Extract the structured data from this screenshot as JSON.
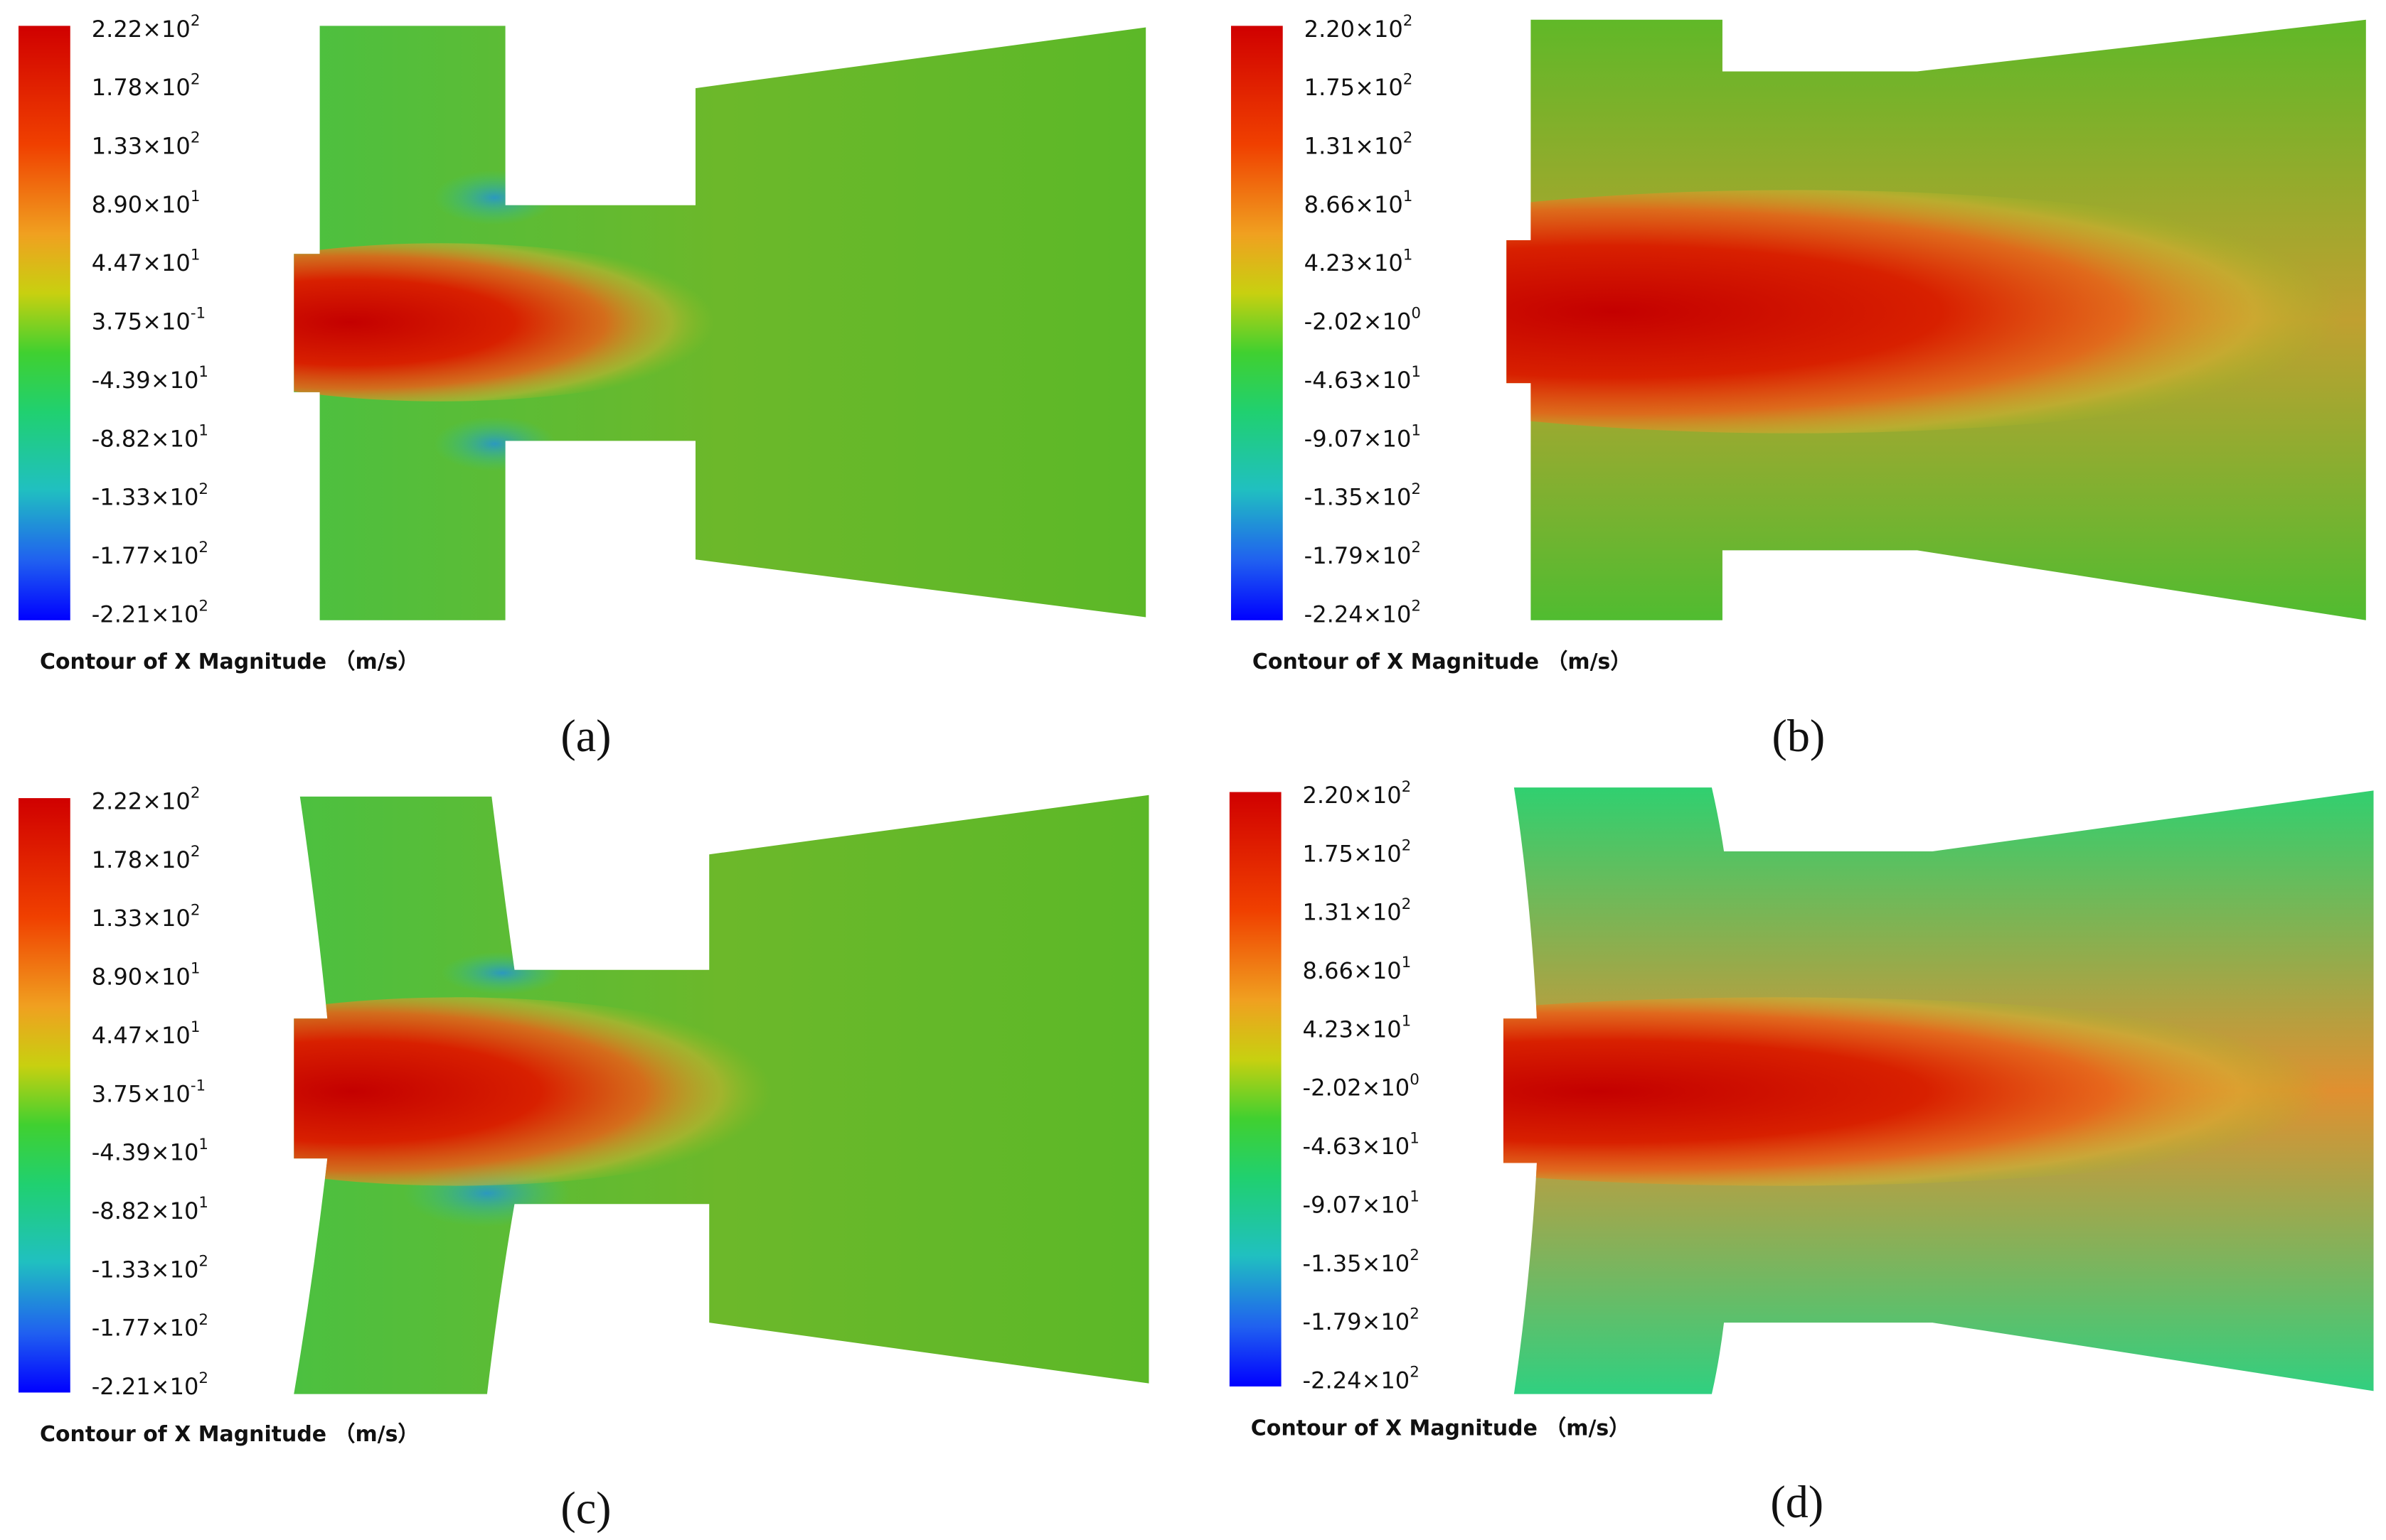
{
  "panels": [
    {
      "legend_labels": [
        {
          "base": "2.22×10",
          "exp": "2"
        },
        {
          "base": "1.78×10",
          "exp": "2"
        },
        {
          "base": "1.33×10",
          "exp": "2"
        },
        {
          "base": "8.90×10",
          "exp": "1"
        },
        {
          "base": "4.47×10",
          "exp": "1"
        },
        {
          "base": "3.75×10",
          "exp": "-1"
        },
        {
          "base": "-4.39×10",
          "exp": "1"
        },
        {
          "base": "-8.82×10",
          "exp": "1"
        },
        {
          "base": "-1.33×10",
          "exp": "2"
        },
        {
          "base": "-1.77×10",
          "exp": "2"
        },
        {
          "base": "-2.21×10",
          "exp": "2"
        }
      ],
      "caption": "Contour of X Magnitude （m/s）",
      "label": "(a)"
    },
    {
      "legend_labels": [
        {
          "base": "2.20×10",
          "exp": "2"
        },
        {
          "base": "1.75×10",
          "exp": "2"
        },
        {
          "base": "1.31×10",
          "exp": "2"
        },
        {
          "base": "8.66×10",
          "exp": "1"
        },
        {
          "base": "4.23×10",
          "exp": "1"
        },
        {
          "base": "-2.02×10",
          "exp": "0"
        },
        {
          "base": "-4.63×10",
          "exp": "1"
        },
        {
          "base": "-9.07×10",
          "exp": "1"
        },
        {
          "base": "-1.35×10",
          "exp": "2"
        },
        {
          "base": "-1.79×10",
          "exp": "2"
        },
        {
          "base": "-2.24×10",
          "exp": "2"
        }
      ],
      "caption": "Contour of X Magnitude （m/s）",
      "label": "(b)"
    },
    {
      "legend_labels": [
        {
          "base": "2.22×10",
          "exp": "2"
        },
        {
          "base": "1.78×10",
          "exp": "2"
        },
        {
          "base": "1.33×10",
          "exp": "2"
        },
        {
          "base": "8.90×10",
          "exp": "1"
        },
        {
          "base": "4.47×10",
          "exp": "1"
        },
        {
          "base": "3.75×10",
          "exp": "-1"
        },
        {
          "base": "-4.39×10",
          "exp": "1"
        },
        {
          "base": "-8.82×10",
          "exp": "1"
        },
        {
          "base": "-1.33×10",
          "exp": "2"
        },
        {
          "base": "-1.77×10",
          "exp": "2"
        },
        {
          "base": "-2.21×10",
          "exp": "2"
        }
      ],
      "caption": "Contour of X Magnitude （m/s）",
      "label": "(c)"
    },
    {
      "legend_labels": [
        {
          "base": "2.20×10",
          "exp": "2"
        },
        {
          "base": "1.75×10",
          "exp": "2"
        },
        {
          "base": "1.31×10",
          "exp": "2"
        },
        {
          "base": "8.66×10",
          "exp": "1"
        },
        {
          "base": "4.23×10",
          "exp": "1"
        },
        {
          "base": "-2.02×10",
          "exp": "0"
        },
        {
          "base": "-4.63×10",
          "exp": "1"
        },
        {
          "base": "-9.07×10",
          "exp": "1"
        },
        {
          "base": "-1.35×10",
          "exp": "2"
        },
        {
          "base": "-1.79×10",
          "exp": "2"
        },
        {
          "base": "-2.24×10",
          "exp": "2"
        }
      ],
      "caption": "Contour of X Magnitude （m/s）",
      "label": "(d)"
    }
  ]
}
